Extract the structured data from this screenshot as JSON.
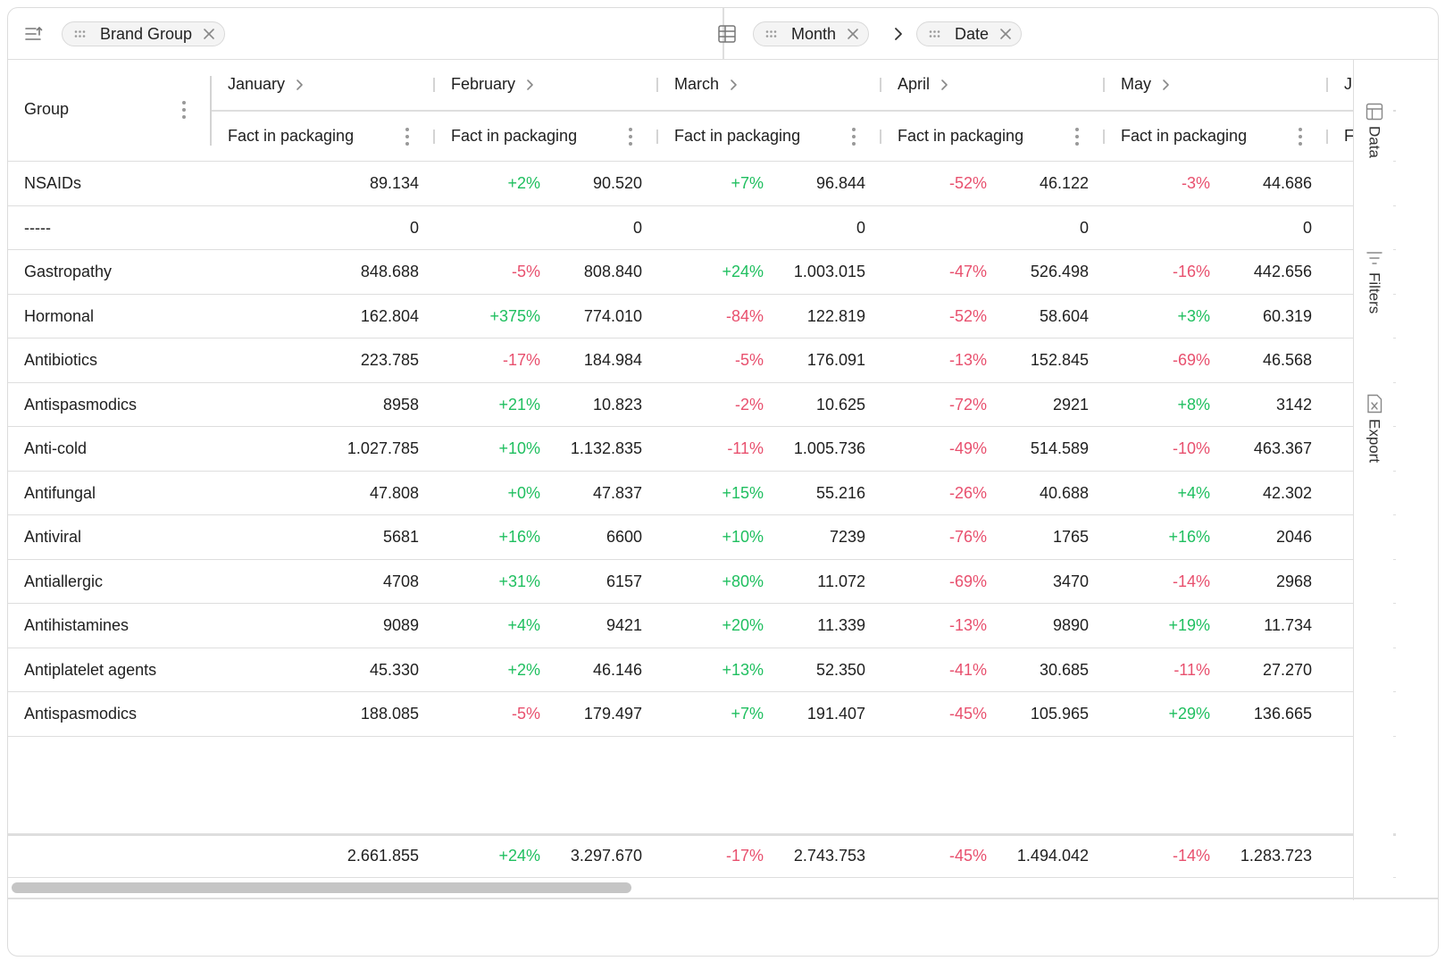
{
  "toolbar": {
    "row_chips": [
      {
        "label": "Brand Group"
      }
    ],
    "column_chips": [
      {
        "label": "Month"
      },
      {
        "label": "Date"
      }
    ]
  },
  "header": {
    "group_label": "Group",
    "months": [
      "January",
      "February",
      "March",
      "April",
      "May",
      "J"
    ],
    "measure_label": "Fact in packaging",
    "measure_partial": "F"
  },
  "rows": [
    {
      "name": "NSAIDs",
      "values": [
        "89.134",
        "90.520",
        "96.844",
        "46.122",
        "44.686"
      ],
      "deltas": [
        "+2%",
        "+7%",
        "-52%",
        "-3%"
      ]
    },
    {
      "name": "-----",
      "values": [
        "0",
        "0",
        "0",
        "0",
        "0"
      ],
      "deltas": [
        "",
        "",
        "",
        ""
      ]
    },
    {
      "name": "Gastropathy",
      "values": [
        "848.688",
        "808.840",
        "1.003.015",
        "526.498",
        "442.656"
      ],
      "deltas": [
        "-5%",
        "+24%",
        "-47%",
        "-16%"
      ]
    },
    {
      "name": "Hormonal",
      "values": [
        "162.804",
        "774.010",
        "122.819",
        "58.604",
        "60.319"
      ],
      "deltas": [
        "+375%",
        "-84%",
        "-52%",
        "+3%"
      ]
    },
    {
      "name": "Antibiotics",
      "values": [
        "223.785",
        "184.984",
        "176.091",
        "152.845",
        "46.568"
      ],
      "deltas": [
        "-17%",
        "-5%",
        "-13%",
        "-69%"
      ]
    },
    {
      "name": "Antispasmodics",
      "values": [
        "8958",
        "10.823",
        "10.625",
        "2921",
        "3142"
      ],
      "deltas": [
        "+21%",
        "-2%",
        "-72%",
        "+8%"
      ]
    },
    {
      "name": "Anti-cold",
      "values": [
        "1.027.785",
        "1.132.835",
        "1.005.736",
        "514.589",
        "463.367"
      ],
      "deltas": [
        "+10%",
        "-11%",
        "-49%",
        "-10%"
      ]
    },
    {
      "name": "Antifungal",
      "values": [
        "47.808",
        "47.837",
        "55.216",
        "40.688",
        "42.302"
      ],
      "deltas": [
        "+0%",
        "+15%",
        "-26%",
        "+4%"
      ]
    },
    {
      "name": "Antiviral",
      "values": [
        "5681",
        "6600",
        "7239",
        "1765",
        "2046"
      ],
      "deltas": [
        "+16%",
        "+10%",
        "-76%",
        "+16%"
      ]
    },
    {
      "name": "Antiallergic",
      "values": [
        "4708",
        "6157",
        "11.072",
        "3470",
        "2968"
      ],
      "deltas": [
        "+31%",
        "+80%",
        "-69%",
        "-14%"
      ]
    },
    {
      "name": "Antihistamines",
      "values": [
        "9089",
        "9421",
        "11.339",
        "9890",
        "11.734"
      ],
      "deltas": [
        "+4%",
        "+20%",
        "-13%",
        "+19%"
      ]
    },
    {
      "name": "Antiplatelet agents",
      "values": [
        "45.330",
        "46.146",
        "52.350",
        "30.685",
        "27.270"
      ],
      "deltas": [
        "+2%",
        "+13%",
        "-41%",
        "-11%"
      ]
    },
    {
      "name": "Antispasmodics",
      "values": [
        "188.085",
        "179.497",
        "191.407",
        "105.965",
        "136.665"
      ],
      "deltas": [
        "-5%",
        "+7%",
        "-45%",
        "+29%"
      ]
    }
  ],
  "totals": {
    "values": [
      "2.661.855",
      "3.297.670",
      "2.743.753",
      "1.494.042",
      "1.283.723"
    ],
    "deltas": [
      "+24%",
      "-17%",
      "-45%",
      "-14%"
    ]
  },
  "sidebar": {
    "items": [
      {
        "label": "Data"
      },
      {
        "label": "Filters"
      },
      {
        "label": "Export"
      }
    ]
  },
  "colors": {
    "positive": "#1fbf5f",
    "negative": "#e8506e"
  }
}
